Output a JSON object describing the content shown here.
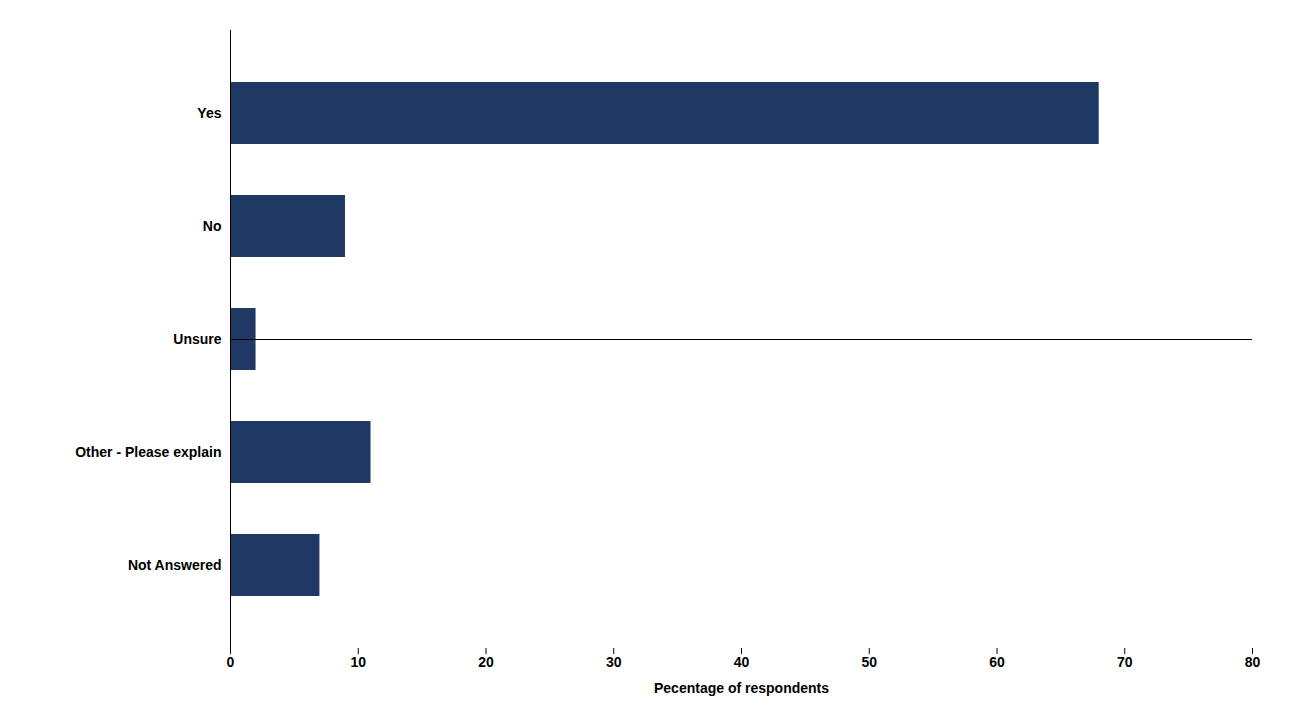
{
  "chart_data": {
    "type": "bar",
    "orientation": "horizontal",
    "categories": [
      "Yes",
      "No",
      "Unsure",
      "Other - Please explain",
      "Not Answered"
    ],
    "values": [
      68,
      9,
      2,
      11,
      7
    ],
    "color": "#1F3864",
    "xlabel": "Pecentage of respondents",
    "xlim": [
      0,
      80
    ],
    "xticks": [
      0,
      10,
      20,
      30,
      40,
      50,
      60,
      70,
      80
    ],
    "grid": false
  }
}
